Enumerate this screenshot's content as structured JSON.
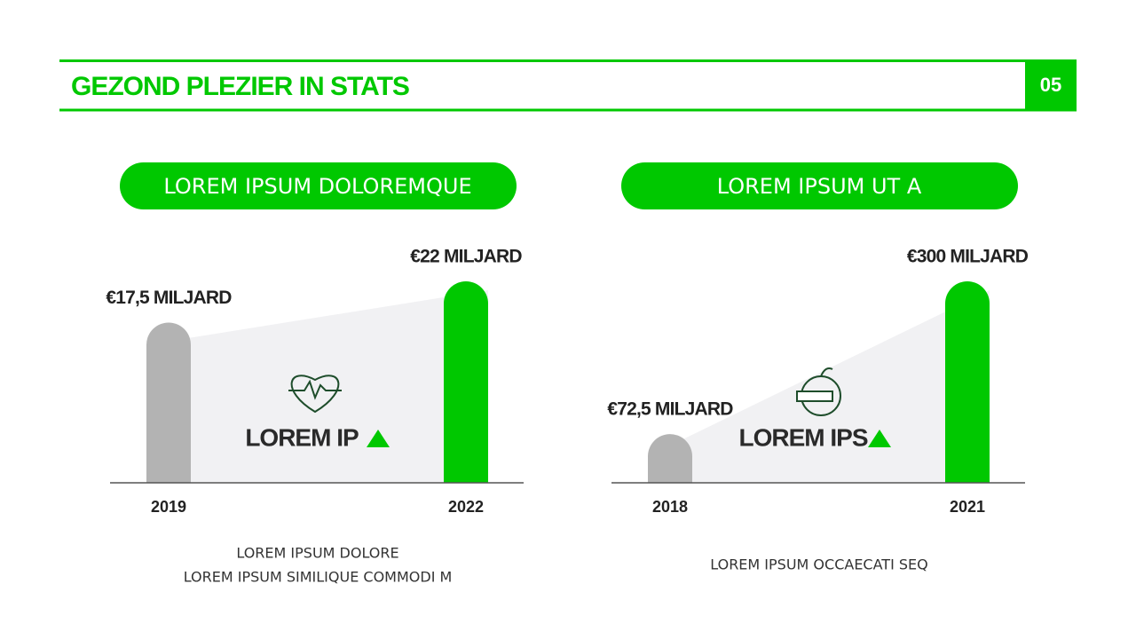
{
  "header": {
    "title": "GEZOND PLEZIER IN STATS",
    "page": "05"
  },
  "chart_data": [
    {
      "type": "bar",
      "title": "LOREM IPSUM DOLOREMQUE",
      "categories": [
        "2019",
        "2022"
      ],
      "values": [
        17.5,
        22
      ],
      "value_labels": [
        "€17,5 MILJARD",
        "€22 MILJARD"
      ],
      "colors": [
        "#b3b3b3",
        "#00c800"
      ],
      "ylim": [
        0,
        22
      ],
      "annotation": "LOREM IP",
      "caption": [
        "LOREM IPSUM DOLORE",
        "LOREM IPSUM SIMILIQUE COMMODI M"
      ]
    },
    {
      "type": "bar",
      "title": "LOREM IPSUM UT A",
      "categories": [
        "2018",
        "2021"
      ],
      "values": [
        72.5,
        300
      ],
      "value_labels": [
        "€72,5 MILJARD",
        "€300 MILJARD"
      ],
      "colors": [
        "#b3b3b3",
        "#00c800"
      ],
      "ylim": [
        0,
        300
      ],
      "annotation": "LOREM IPS",
      "caption": [
        "LOREM IPSUM OCCAECATI SEQ"
      ]
    }
  ]
}
